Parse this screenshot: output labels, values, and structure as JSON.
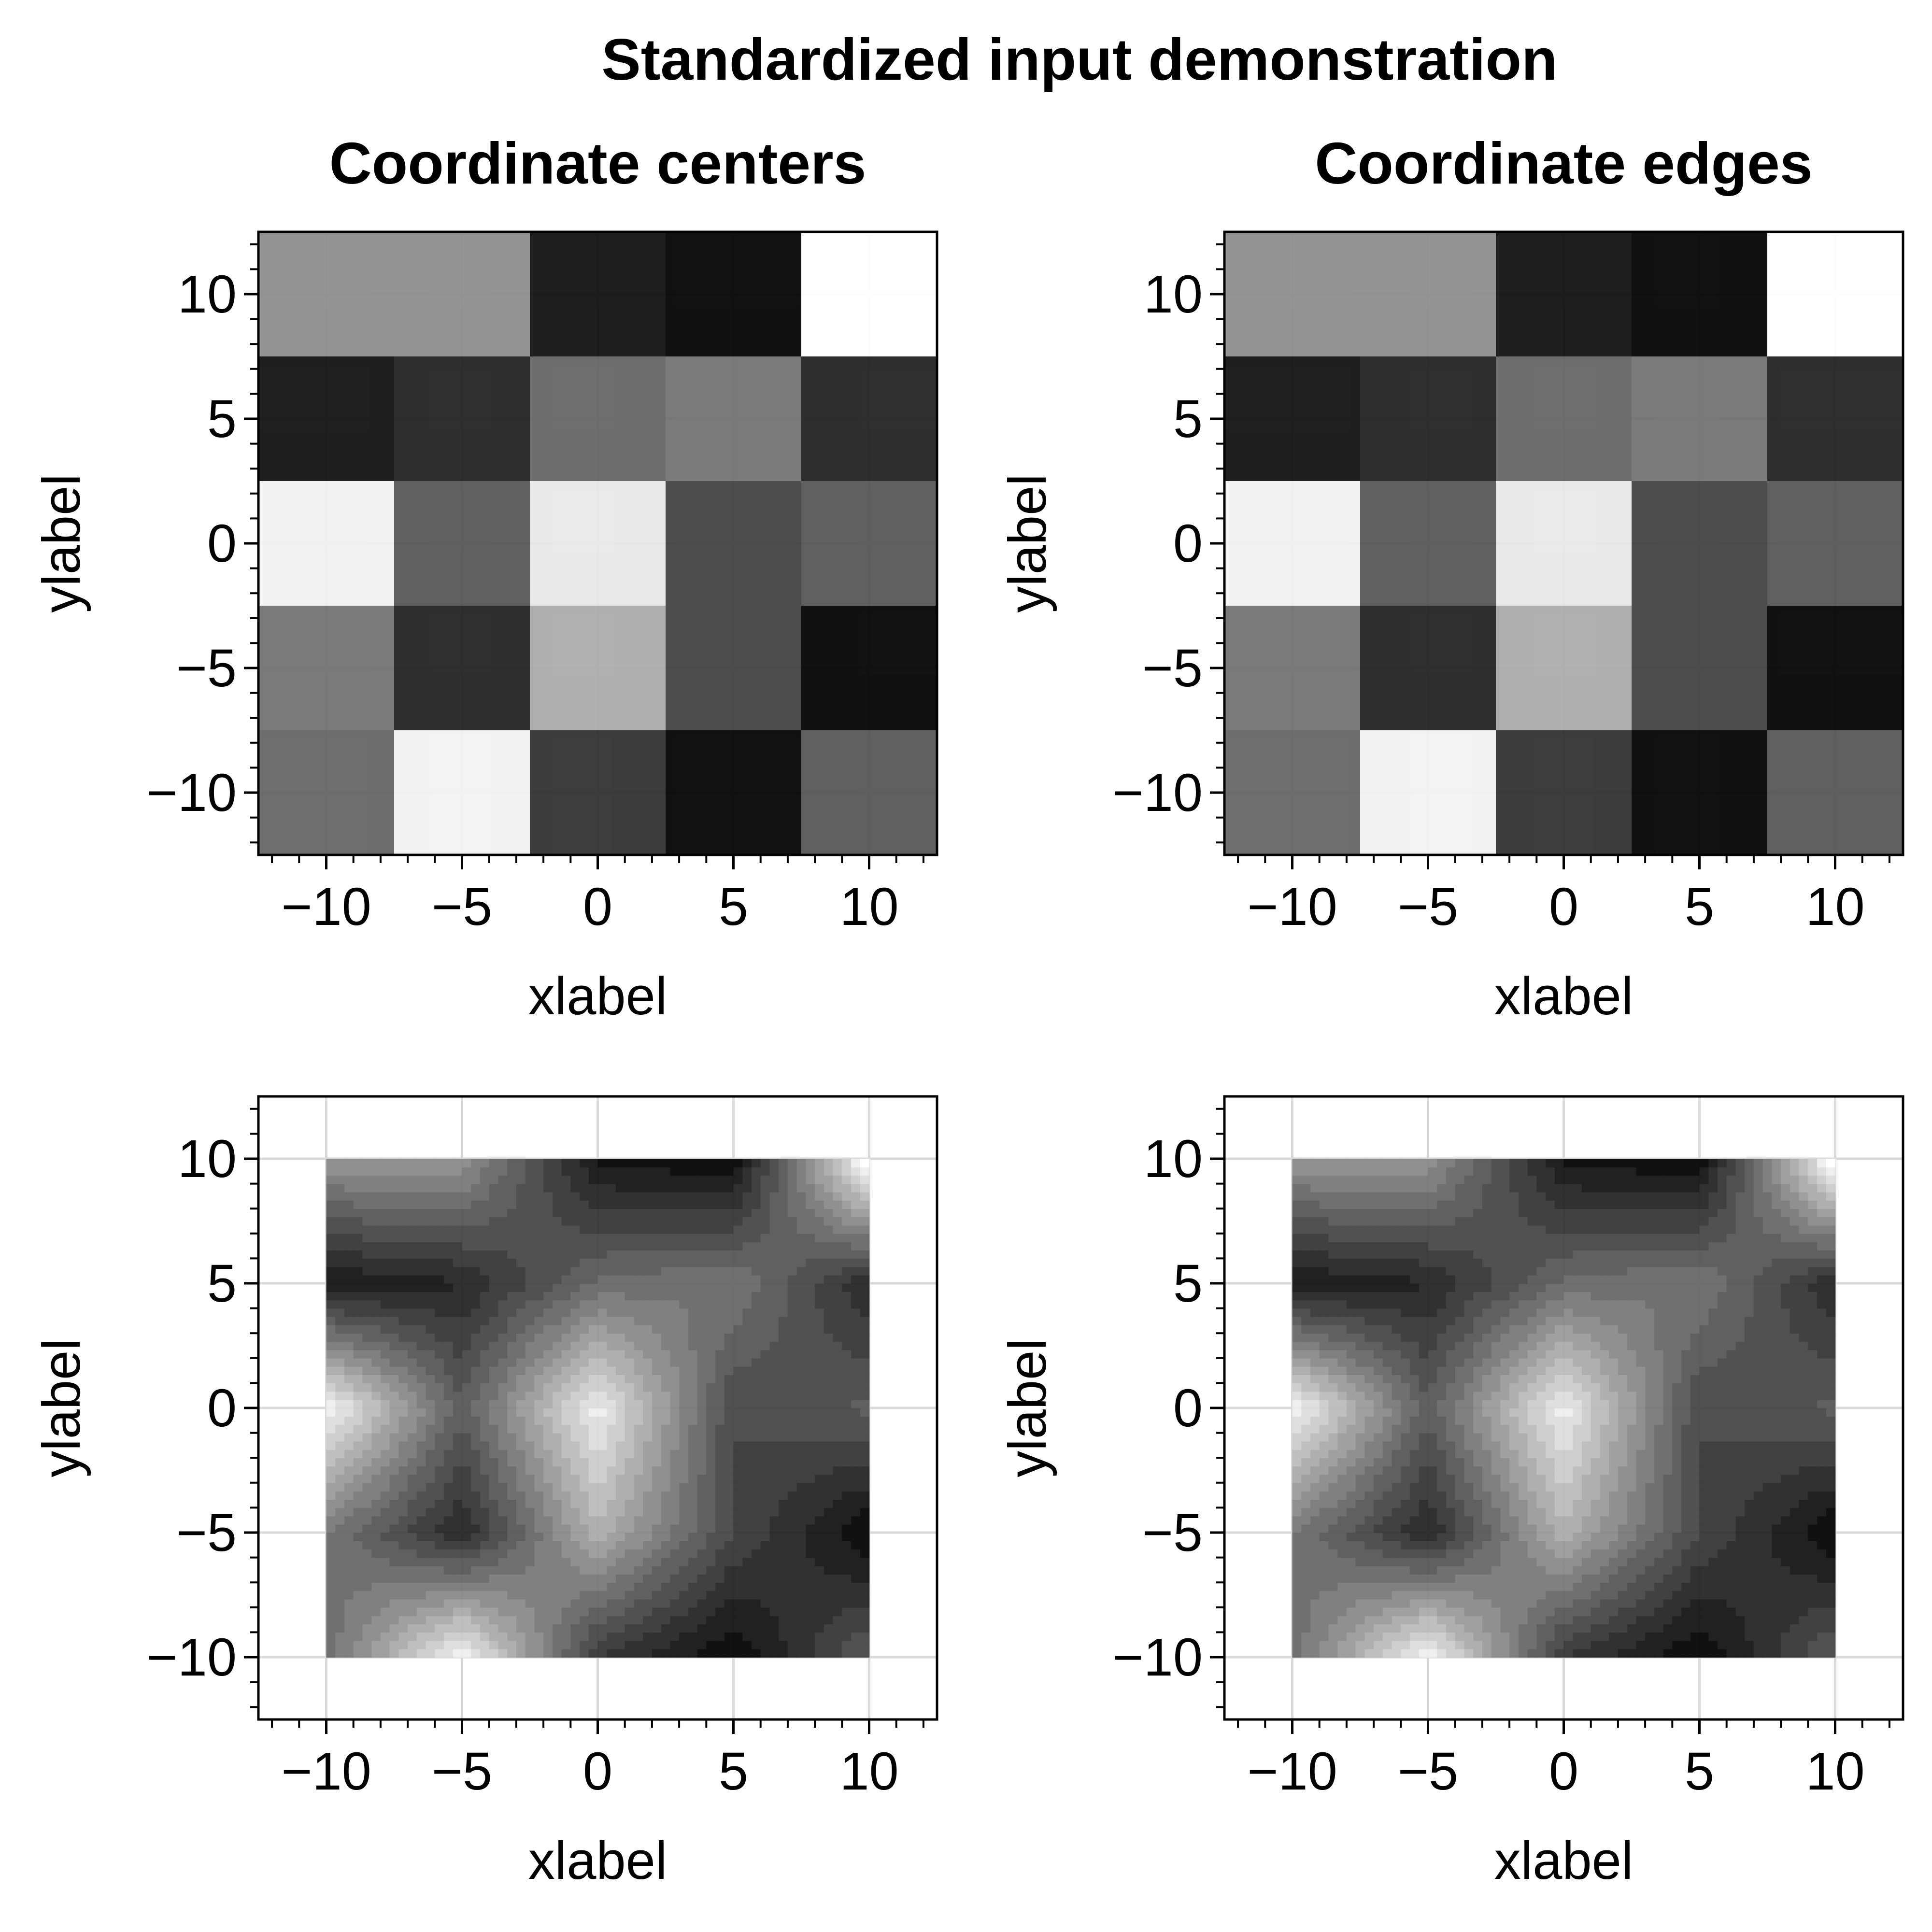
{
  "figure": {
    "suptitle": "Standardized input demonstration",
    "background": "#ffffff",
    "grid_color": "#d9d9d9"
  },
  "chart_data": [
    {
      "type": "heatmap",
      "panel": "top-left",
      "title": "Coordinate centers",
      "xlabel": "xlabel",
      "ylabel": "ylabel",
      "xlim": [
        -12.5,
        12.5
      ],
      "ylim": [
        -12.5,
        12.5
      ],
      "xticks": [
        -10,
        -5,
        0,
        5,
        10
      ],
      "yticks": [
        -10,
        -5,
        0,
        5,
        10
      ],
      "xtick_labels": [
        "−10",
        "−5",
        "0",
        "5",
        "10"
      ],
      "ytick_labels": [
        "−10",
        "−5",
        "0",
        "5",
        "10"
      ],
      "grid": true,
      "colormap": "grayscale",
      "x": [
        -10,
        -5,
        0,
        5,
        10
      ],
      "y": [
        10,
        5,
        0,
        -5,
        -10
      ],
      "z": [
        [
          0.55,
          0.55,
          0.05,
          0.0,
          1.0
        ],
        [
          0.06,
          0.12,
          0.39,
          0.44,
          0.12
        ],
        [
          0.94,
          0.33,
          0.91,
          0.25,
          0.33
        ],
        [
          0.44,
          0.12,
          0.67,
          0.25,
          0.0
        ],
        [
          0.39,
          0.95,
          0.18,
          0.0,
          0.33
        ]
      ]
    },
    {
      "type": "heatmap",
      "panel": "top-right",
      "title": "Coordinate edges",
      "xlabel": "xlabel",
      "ylabel": "ylabel",
      "xlim": [
        -12.5,
        12.5
      ],
      "ylim": [
        -12.5,
        12.5
      ],
      "xticks": [
        -10,
        -5,
        0,
        5,
        10
      ],
      "yticks": [
        -10,
        -5,
        0,
        5,
        10
      ],
      "xtick_labels": [
        "−10",
        "−5",
        "0",
        "5",
        "10"
      ],
      "ytick_labels": [
        "−10",
        "−5",
        "0",
        "5",
        "10"
      ],
      "grid": true,
      "colormap": "grayscale",
      "x": [
        -10,
        -5,
        0,
        5,
        10
      ],
      "y": [
        10,
        5,
        0,
        -5,
        -10
      ],
      "z": [
        [
          0.55,
          0.55,
          0.05,
          0.0,
          1.0
        ],
        [
          0.06,
          0.12,
          0.39,
          0.44,
          0.12
        ],
        [
          0.94,
          0.33,
          0.91,
          0.25,
          0.33
        ],
        [
          0.44,
          0.12,
          0.67,
          0.25,
          0.0
        ],
        [
          0.39,
          0.95,
          0.18,
          0.0,
          0.33
        ]
      ]
    },
    {
      "type": "contour",
      "panel": "bottom-left",
      "title": "",
      "xlabel": "xlabel",
      "ylabel": "ylabel",
      "xlim": [
        -12.5,
        12.5
      ],
      "ylim": [
        -12.5,
        12.5
      ],
      "xticks": [
        -10,
        -5,
        0,
        5,
        10
      ],
      "yticks": [
        -10,
        -5,
        0,
        5,
        10
      ],
      "xtick_labels": [
        "−10",
        "−5",
        "0",
        "5",
        "10"
      ],
      "ytick_labels": [
        "−10",
        "−5",
        "0",
        "5",
        "10"
      ],
      "grid": true,
      "colormap": "grayscale",
      "levels": 16,
      "x": [
        -10,
        -5,
        0,
        5,
        10
      ],
      "y": [
        10,
        5,
        0,
        -5,
        -10
      ],
      "z": [
        [
          0.55,
          0.55,
          0.05,
          0.0,
          1.0
        ],
        [
          0.06,
          0.12,
          0.39,
          0.44,
          0.12
        ],
        [
          0.94,
          0.33,
          0.91,
          0.25,
          0.33
        ],
        [
          0.44,
          0.12,
          0.67,
          0.25,
          0.0
        ],
        [
          0.39,
          0.95,
          0.18,
          0.0,
          0.33
        ]
      ]
    },
    {
      "type": "contour",
      "panel": "bottom-right",
      "title": "",
      "xlabel": "xlabel",
      "ylabel": "ylabel",
      "xlim": [
        -12.5,
        12.5
      ],
      "ylim": [
        -12.5,
        12.5
      ],
      "xticks": [
        -10,
        -5,
        0,
        5,
        10
      ],
      "yticks": [
        -10,
        -5,
        0,
        5,
        10
      ],
      "xtick_labels": [
        "−10",
        "−5",
        "0",
        "5",
        "10"
      ],
      "ytick_labels": [
        "−10",
        "−5",
        "0",
        "5",
        "10"
      ],
      "grid": true,
      "colormap": "grayscale",
      "levels": 16,
      "x": [
        -10,
        -5,
        0,
        5,
        10
      ],
      "y": [
        10,
        5,
        0,
        -5,
        -10
      ],
      "z": [
        [
          0.55,
          0.55,
          0.05,
          0.0,
          1.0
        ],
        [
          0.06,
          0.12,
          0.39,
          0.44,
          0.12
        ],
        [
          0.94,
          0.33,
          0.91,
          0.25,
          0.33
        ],
        [
          0.44,
          0.12,
          0.67,
          0.25,
          0.0
        ],
        [
          0.39,
          0.95,
          0.18,
          0.0,
          0.33
        ]
      ]
    }
  ]
}
